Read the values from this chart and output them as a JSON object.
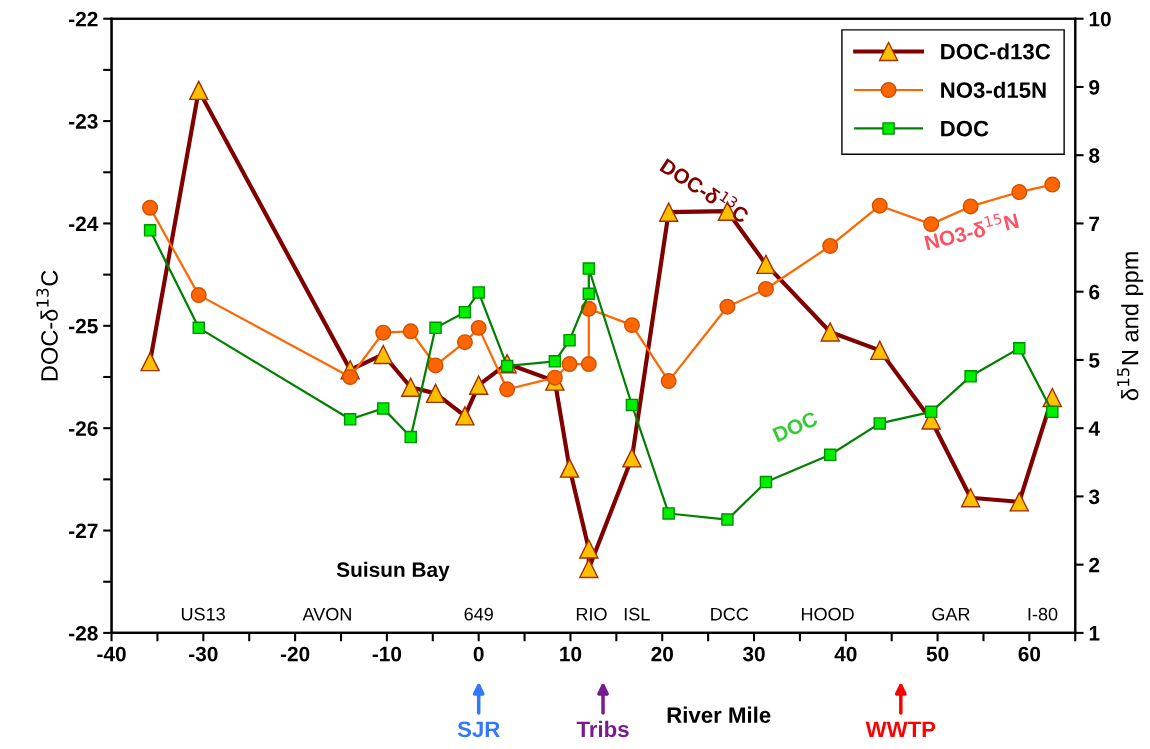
{
  "chart_data": {
    "type": "line",
    "xlabel": "River Mile",
    "ylabel": "DOC-δ$^{13}$C",
    "y2label": "δ$^{15}$N and ppm",
    "xlim": [
      -40,
      65
    ],
    "xticks": [
      -40,
      {
        "value": -35,
        "label": null
      },
      -30,
      {
        "value": -25,
        "label": null
      },
      -20,
      {
        "value": -15,
        "label": null
      },
      -10,
      {
        "value": -5,
        "label": null
      },
      0,
      {
        "value": 5,
        "label": null
      },
      10,
      {
        "value": 15,
        "label": null
      },
      20,
      {
        "value": 25,
        "label": null
      },
      30,
      {
        "value": 35,
        "label": null
      },
      40,
      {
        "value": 45,
        "label": null
      },
      50,
      {
        "value": 55,
        "label": null
      },
      60,
      {
        "value": 65,
        "label": null
      }
    ],
    "ylim": [
      -28,
      -22
    ],
    "yticks": [
      -28,
      {
        "value": -27.5,
        "label": null
      },
      -27,
      {
        "value": -26.5,
        "label": null
      },
      -26,
      {
        "value": -25.5,
        "label": null
      },
      -25,
      {
        "value": -24.5,
        "label": null
      },
      -24,
      {
        "value": -23.5,
        "label": null
      },
      -23,
      {
        "value": -22.5,
        "label": null
      },
      -22
    ],
    "y2lim": [
      1,
      10
    ],
    "y2ticks": [
      1,
      2,
      3,
      4,
      5,
      6,
      7,
      8,
      9,
      10
    ],
    "grid": false,
    "legend": "top right",
    "series": [
      {
        "name": "DOC-d13C",
        "color": "#800000",
        "marker": "triangle",
        "x": [
          -35.8,
          -30.5,
          -14.0,
          -10.4,
          -7.4,
          -4.7,
          -1.5,
          0,
          3.1,
          8.3,
          9.9,
          12.0,
          12.0,
          16.7,
          20.7,
          27.1,
          31.3,
          38.3,
          43.7,
          49.3,
          53.6,
          58.9,
          62.5
        ],
        "values": [
          -25.35,
          -22.7,
          -25.43,
          -25.28,
          -25.6,
          -25.66,
          -25.88,
          -25.58,
          -25.37,
          -25.54,
          -26.39,
          -27.18,
          -27.37,
          -26.29,
          -23.89,
          -23.88,
          -24.4,
          -25.06,
          -25.24,
          -25.92,
          -26.68,
          -26.72,
          -25.7
        ]
      },
      {
        "name": "NO3-d15N",
        "color": "#ff6600",
        "marker": "circle",
        "axis": "y2",
        "x": [
          -35.8,
          -30.5,
          -14.0,
          -10.4,
          -7.4,
          -4.7,
          -1.5,
          0,
          3.1,
          8.3,
          9.9,
          12.0,
          12.0,
          16.7,
          20.7,
          27.1,
          31.3,
          38.3,
          43.7,
          49.3,
          53.6,
          58.9,
          62.5
        ],
        "values": [
          7.23,
          5.95,
          4.75,
          5.4,
          5.42,
          4.92,
          5.26,
          5.47,
          4.57,
          4.74,
          4.94,
          4.94,
          5.75,
          5.51,
          4.69,
          5.78,
          6.04,
          6.67,
          7.26,
          6.99,
          7.25,
          7.46,
          7.57
        ]
      },
      {
        "name": "DOC",
        "color": "#008000",
        "marker": "square",
        "axis": "y2",
        "x": [
          -35.8,
          -30.5,
          -14.0,
          -10.4,
          -7.4,
          -4.7,
          -1.5,
          0,
          3.1,
          8.3,
          9.9,
          12.0,
          12.0,
          16.7,
          20.7,
          27.1,
          31.3,
          38.3,
          43.7,
          49.3,
          53.6,
          58.9,
          62.5
        ],
        "values": [
          6.9,
          5.47,
          4.13,
          4.29,
          3.87,
          5.47,
          5.7,
          5.99,
          4.91,
          4.98,
          5.29,
          5.97,
          6.34,
          4.34,
          2.75,
          2.66,
          3.21,
          3.61,
          4.07,
          4.24,
          4.76,
          5.17,
          4.24
        ]
      }
    ],
    "annotations": [
      "DOC-δ$^{13}$C",
      "NO3-δ$^{15}$N",
      "DOC",
      "Suisun Bay",
      "US13",
      "AVON",
      "649",
      "RIO",
      "ISL",
      "DCC",
      "HOOD",
      "GAR",
      "I-80",
      "SJR",
      "Tribs",
      "WWTP"
    ]
  }
}
